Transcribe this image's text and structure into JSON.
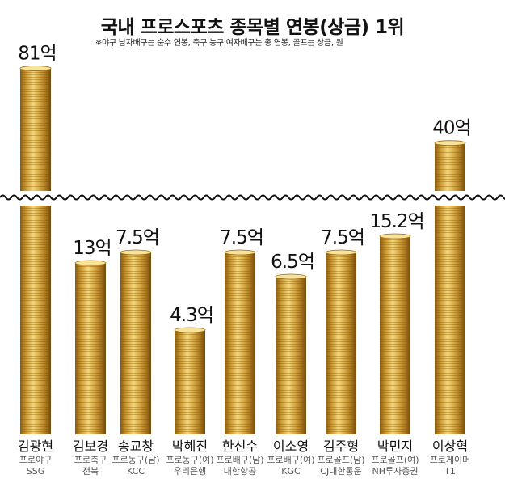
{
  "chart_data": {
    "type": "bar",
    "title": "국내 프로스포츠 종목별 연봉(상금) 1위",
    "subtitle": "※야구 남자배구는 순수 연봉, 축구 농구 여자배구는 총 연봉, 골프는 상금, 원",
    "unit": "억",
    "axis_break": true,
    "categories": [
      "김광현",
      "김보경",
      "송교창",
      "박혜진",
      "한선수",
      "이소영",
      "김주형",
      "박민지",
      "이상혁"
    ],
    "values": [
      81,
      13,
      7.5,
      4.3,
      7.5,
      6.5,
      7.5,
      15.2,
      40
    ],
    "value_labels": [
      "81억",
      "13억",
      "7.5억",
      "4.3억",
      "7.5억",
      "6.5억",
      "7.5억",
      "15.2억",
      "40억"
    ],
    "sport": [
      "프로야구",
      "프로축구",
      "프로농구(남)",
      "프로농구(여)",
      "프로배구(남)",
      "프로배구(여)",
      "프로골프(남)",
      "프로골프(여)",
      "프로게이머"
    ],
    "team": [
      "SSG",
      "전북",
      "KCC",
      "우리은행",
      "대한항공",
      "KGC",
      "CJ대한통운",
      "NH투자증권",
      "T1"
    ],
    "colors": {
      "coin_light": "#f5d77a",
      "coin_mid": "#d4a437",
      "coin_dark": "#8a5e12",
      "break_line": "#111111"
    }
  }
}
